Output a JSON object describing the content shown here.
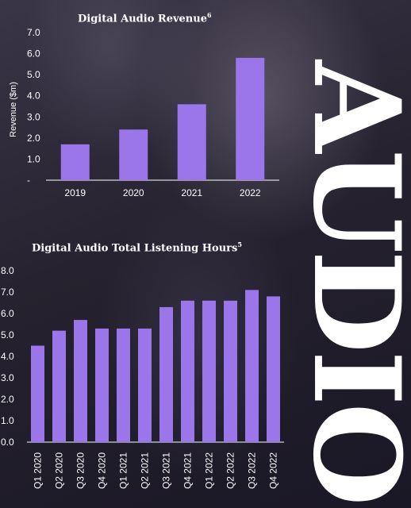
{
  "side_word": "AUDIO",
  "colors": {
    "bar": "#9b76ea",
    "text": "#ffffff"
  },
  "chart_data": [
    {
      "type": "bar",
      "title": "Digital Audio Revenue",
      "title_footnote": "6",
      "ylabel": "Revenue ($m)",
      "categories": [
        "2019",
        "2020",
        "2021",
        "2022"
      ],
      "values": [
        1.7,
        2.4,
        3.6,
        5.8
      ],
      "ylim": [
        0,
        7.0
      ],
      "yticks": [
        "-",
        "1.0",
        "2.0",
        "3.0",
        "4.0",
        "5.0",
        "6.0",
        "7.0"
      ],
      "grid": false
    },
    {
      "type": "bar",
      "title": "Digital Audio Total Listening Hours",
      "title_footnote": "5",
      "categories": [
        "Q1 2020",
        "Q2 2020",
        "Q3 2020",
        "Q4 2020",
        "Q1 2021",
        "Q2 2021",
        "Q3 2021",
        "Q4 2021",
        "Q1 2022",
        "Q2 2022",
        "Q3 2022",
        "Q4 2022"
      ],
      "values": [
        4.5,
        5.2,
        5.7,
        5.3,
        5.3,
        5.3,
        6.3,
        6.6,
        6.6,
        6.6,
        7.1,
        6.8
      ],
      "ylim": [
        0,
        8.0
      ],
      "yticks": [
        "0.0",
        "1.0",
        "2.0",
        "3.0",
        "4.0",
        "5.0",
        "6.0",
        "7.0",
        "8.0"
      ],
      "grid": false
    }
  ]
}
